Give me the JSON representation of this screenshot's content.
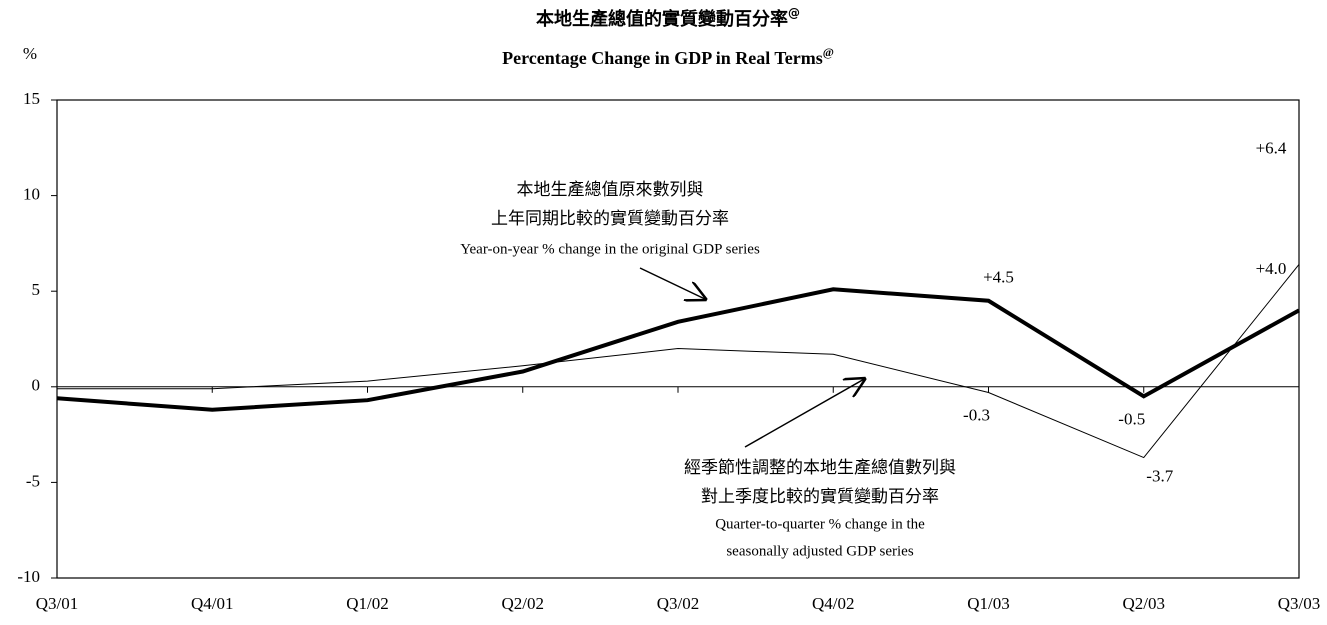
{
  "chart_data": {
    "type": "line",
    "title": "本地生產總值的實質變動百分率",
    "title_superscript": "@",
    "subtitle": "Percentage Change in GDP in Real Terms",
    "subtitle_superscript": "@",
    "y_label": "%",
    "categories": [
      "Q3/01",
      "Q4/01",
      "Q1/02",
      "Q2/02",
      "Q3/02",
      "Q4/02",
      "Q1/03",
      "Q2/03",
      "Q3/03"
    ],
    "series": [
      {
        "color": "#000000",
        "width": 4,
        "values": [
          -0.6,
          -1.2,
          -0.7,
          0.8,
          3.4,
          5.1,
          4.5,
          -0.5,
          4.0
        ],
        "value_labels": [
          null,
          null,
          null,
          null,
          null,
          null,
          "+4.5",
          "-0.5",
          "+4.0"
        ]
      },
      {
        "color": "#000000",
        "width": 1,
        "values": [
          -0.1,
          -0.1,
          0.3,
          1.1,
          2.0,
          1.7,
          -0.3,
          -3.7,
          6.4
        ],
        "value_labels": [
          null,
          null,
          null,
          null,
          null,
          null,
          "-0.3",
          "-3.7",
          "+6.4"
        ]
      }
    ],
    "annotations": [
      {
        "lines": [
          "本地生產總值原來數列與",
          "上年同期比較的實質變動百分率",
          "Year-on-year % change in the original GDP series"
        ]
      },
      {
        "lines": [
          "經季節性調整的本地生產總值數列與",
          "對上季度比較的實質變動百分率",
          "Quarter-to-quarter % change in the",
          "seasonally adjusted GDP series"
        ]
      }
    ],
    "ylim": [
      -10,
      15
    ],
    "yticks": [
      -10,
      -5,
      0,
      5,
      10,
      15
    ],
    "grid": false
  }
}
